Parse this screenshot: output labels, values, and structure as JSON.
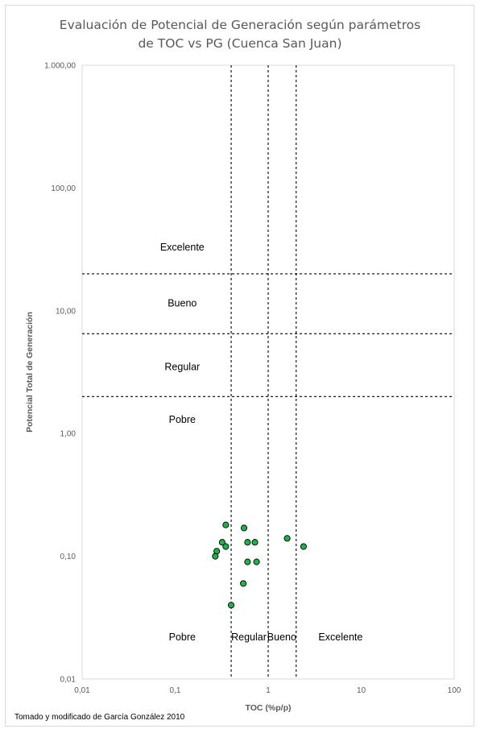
{
  "chart_data": {
    "type": "scatter",
    "title_lines": [
      "Evaluación de Potencial de Generación según parámetros",
      "de TOC vs PG (Cuenca San Juan)"
    ],
    "xlabel": "TOC (%p/p)",
    "ylabel": "Potencial Total de Generación",
    "x_scale": "log",
    "y_scale": "log",
    "xlim": [
      0.01,
      100
    ],
    "ylim": [
      0.01,
      1000
    ],
    "x_ticks": [
      {
        "value": 0.01,
        "label": "0,01"
      },
      {
        "value": 0.1,
        "label": "0,1"
      },
      {
        "value": 1,
        "label": "1"
      },
      {
        "value": 10,
        "label": "10"
      },
      {
        "value": 100,
        "label": "100"
      }
    ],
    "y_ticks": [
      {
        "value": 0.01,
        "label": "0,01"
      },
      {
        "value": 0.1,
        "label": "0,10"
      },
      {
        "value": 1,
        "label": "1,00"
      },
      {
        "value": 10,
        "label": "10,00"
      },
      {
        "value": 100,
        "label": "100,00"
      },
      {
        "value": 1000,
        "label": "1.000,00"
      }
    ],
    "grid": false,
    "points": [
      {
        "x": 0.35,
        "y": 0.18
      },
      {
        "x": 0.55,
        "y": 0.17
      },
      {
        "x": 0.32,
        "y": 0.13
      },
      {
        "x": 0.35,
        "y": 0.12
      },
      {
        "x": 0.28,
        "y": 0.11
      },
      {
        "x": 0.27,
        "y": 0.1
      },
      {
        "x": 0.6,
        "y": 0.13
      },
      {
        "x": 0.72,
        "y": 0.13
      },
      {
        "x": 0.6,
        "y": 0.09
      },
      {
        "x": 0.75,
        "y": 0.09
      },
      {
        "x": 0.54,
        "y": 0.06
      },
      {
        "x": 0.4,
        "y": 0.04
      },
      {
        "x": 1.6,
        "y": 0.14
      },
      {
        "x": 2.4,
        "y": 0.12
      }
    ],
    "x_thresholds": [
      0.4,
      1,
      2
    ],
    "y_thresholds": [
      2,
      6.5,
      20
    ],
    "zone_labels_pg": [
      {
        "text": "Excelente",
        "y": 33
      },
      {
        "text": "Bueno",
        "y": 11.5
      },
      {
        "text": "Regular",
        "y": 3.5
      },
      {
        "text": "Pobre",
        "y": 1.3
      }
    ],
    "zone_labels_toc": [
      {
        "text": "Pobre",
        "x": 0.08
      },
      {
        "text": "Regular",
        "x": 0.62
      },
      {
        "text": "Bueno",
        "x": 1.4
      },
      {
        "text": "Excelente",
        "x": 6
      }
    ],
    "zone_labels_toc_y": 0.022,
    "marker_color": "#1fb24a",
    "threshold_color": "#000000"
  },
  "note": "Tomado y modificado de García González 2010"
}
